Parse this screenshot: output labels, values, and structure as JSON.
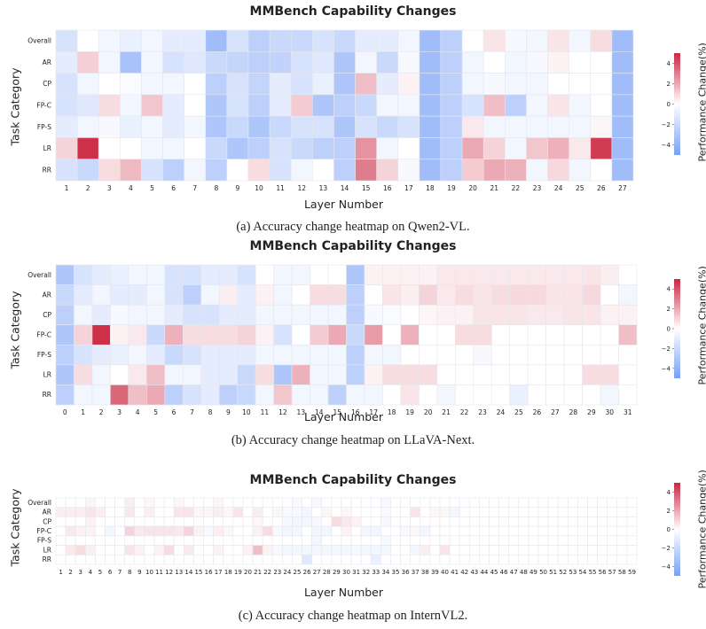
{
  "chart_data": [
    {
      "type": "heatmap",
      "title": "MMBench Capability Changes",
      "xlabel": "Layer Number",
      "ylabel": "Task Category",
      "caption": "(a) Accuracy change heatmap on Qwen2-VL.",
      "colorbar_label": "Performance Change(%)",
      "colorbar_ticks": [
        "4",
        "2",
        "0",
        "−2",
        "−4"
      ],
      "clim": [
        -5,
        5
      ],
      "rows": [
        "Overall",
        "AR",
        "CP",
        "FP-C",
        "FP-S",
        "LR",
        "RR"
      ],
      "columns": [
        "1",
        "2",
        "3",
        "4",
        "5",
        "6",
        "7",
        "8",
        "9",
        "10",
        "11",
        "12",
        "13",
        "14",
        "15",
        "16",
        "17",
        "18",
        "19",
        "20",
        "21",
        "22",
        "23",
        "24",
        "25",
        "26",
        "27"
      ],
      "values": [
        [
          -1.5,
          0,
          -0.5,
          -0.8,
          -0.5,
          -1,
          -1,
          -3.5,
          -1.5,
          -2.5,
          -2,
          -2,
          -1.5,
          -2,
          -1,
          -1,
          -0.5,
          -3.5,
          -2.5,
          0,
          0.6,
          -0.3,
          -0.5,
          0.6,
          -0.5,
          0.8,
          -3.5
        ],
        [
          -1,
          1.1,
          -0.5,
          -3.2,
          -0.5,
          -1.5,
          -1.2,
          -2,
          -2.2,
          -2.5,
          -2.3,
          -1.5,
          -1.2,
          -3,
          -0.5,
          -2,
          -0.3,
          -3.5,
          -2.5,
          -0.5,
          0,
          -0.5,
          -0.3,
          0.3,
          0,
          0,
          -3.5
        ],
        [
          -1.5,
          -0.5,
          0,
          -0.2,
          -0.5,
          -0.5,
          0,
          -2.5,
          -1.5,
          -2.2,
          -1,
          -1.5,
          -0.8,
          -3,
          1.5,
          -1,
          0.3,
          -3.5,
          -2.5,
          -0.5,
          -0.3,
          -0.5,
          -0.5,
          0,
          0,
          0,
          -3.5
        ],
        [
          -1.5,
          -1.2,
          0.8,
          -0.5,
          1.3,
          -1,
          0,
          -3,
          -1.5,
          -2.5,
          -1,
          1.2,
          -3,
          -2.5,
          -2,
          -0.5,
          -0.5,
          -3.5,
          -2.5,
          -1.5,
          1.5,
          -2.5,
          -0.5,
          0.6,
          -0.5,
          0,
          -3.5
        ],
        [
          -1,
          -0.5,
          -0.3,
          -0.8,
          -0.5,
          -1,
          -0.5,
          -3,
          -2,
          -3,
          -2,
          -1.5,
          -1.5,
          -3,
          -1.5,
          -2,
          -1.5,
          -3.5,
          -2.5,
          0.5,
          -0.5,
          -0.5,
          -0.5,
          -0.5,
          -0.5,
          0.2,
          -3.5
        ],
        [
          1,
          4.8,
          0,
          0,
          -0.5,
          -0.5,
          0,
          -2,
          -3,
          -2.5,
          -1.5,
          -2,
          -2.5,
          -2.5,
          2.5,
          -0.5,
          0,
          -3.5,
          -2.5,
          2,
          1,
          -0.5,
          1.3,
          1.8,
          0.5,
          4.5,
          -3.5
        ],
        [
          -1.5,
          -2,
          0.8,
          1.6,
          -1.5,
          -2.5,
          -0.5,
          -2.5,
          0,
          0.8,
          -1.5,
          -0.5,
          0,
          -2.5,
          3,
          1,
          -0.3,
          -3.5,
          -2.5,
          1.2,
          2,
          1.8,
          -0.5,
          0.9,
          -0.5,
          0,
          -3.5
        ]
      ]
    },
    {
      "type": "heatmap",
      "title": "MMBench Capability Changes",
      "xlabel": "Layer Number",
      "ylabel": "Task Category",
      "caption": "(b) Accuracy change heatmap on LLaVA-Next.",
      "colorbar_label": "Performance Change(%)",
      "colorbar_ticks": [
        "4",
        "2",
        "0",
        "−2",
        "−4"
      ],
      "clim": [
        -5,
        5
      ],
      "rows": [
        "Overall",
        "AR",
        "CP",
        "FP-C",
        "FP-S",
        "LR",
        "RR"
      ],
      "columns": [
        "0",
        "1",
        "2",
        "3",
        "4",
        "5",
        "6",
        "7",
        "8",
        "9",
        "10",
        "11",
        "12",
        "13",
        "14",
        "15",
        "16",
        "17",
        "18",
        "19",
        "20",
        "21",
        "22",
        "23",
        "24",
        "25",
        "26",
        "27",
        "28",
        "29",
        "30",
        "31"
      ],
      "values": [
        [
          -3,
          -1.5,
          -1,
          -0.8,
          -0.5,
          -0.5,
          -1.5,
          -1.5,
          -1,
          -1,
          -1.5,
          0,
          -0.5,
          -0.5,
          0,
          0,
          -3,
          0.3,
          0.3,
          0.3,
          0.3,
          0.5,
          0.5,
          0.5,
          0.5,
          0.5,
          0.5,
          0.5,
          0.5,
          0.6,
          0.4,
          0
        ],
        [
          -2,
          -1,
          -0.5,
          -1,
          -1,
          -0.5,
          -1.5,
          -2.5,
          -0.5,
          0.4,
          -1,
          0.3,
          -0.5,
          0,
          0.8,
          0.8,
          -2.5,
          0,
          0.6,
          0.4,
          1,
          0.5,
          0.8,
          0.6,
          0.8,
          0.9,
          0.9,
          0.6,
          0.6,
          0.9,
          0,
          -0.5
        ],
        [
          -2.5,
          -0.5,
          -1,
          -0.3,
          -0.5,
          -0.5,
          -1,
          -1.5,
          -1.5,
          -1,
          -1,
          -0.5,
          -0.5,
          -0.5,
          -0.5,
          -0.5,
          -2.5,
          -0.3,
          -0.2,
          0,
          0.2,
          0.3,
          0.3,
          0.6,
          0.6,
          0.6,
          0.5,
          0.5,
          0.6,
          0.6,
          0.3,
          0.3
        ],
        [
          -3,
          1,
          4.8,
          0.3,
          0.5,
          -2,
          1.8,
          0.8,
          0.8,
          0.8,
          1,
          0.3,
          -1.5,
          0,
          1.2,
          2,
          -2,
          2.3,
          0,
          1.8,
          0,
          0,
          0.8,
          0.8,
          0,
          0,
          0,
          0,
          0,
          0,
          0,
          1.5
        ],
        [
          -2.5,
          -1.5,
          -1,
          -0.8,
          -0.5,
          -1,
          -2,
          -1.5,
          -1,
          -1,
          -1,
          -0.5,
          -0.5,
          -0.5,
          -0.5,
          -0.5,
          -2.5,
          -0.5,
          -0.5,
          0,
          0,
          0,
          0,
          -0.3,
          0,
          0,
          0,
          0,
          0,
          0,
          0,
          0
        ],
        [
          -3,
          0.8,
          -0.5,
          0,
          0.5,
          1.5,
          -0.5,
          -0.5,
          -1,
          -1,
          -2,
          0.8,
          -3,
          1.8,
          -0.5,
          -0.5,
          -2.5,
          0.3,
          0.8,
          0.8,
          0.8,
          0,
          0,
          0,
          0,
          0,
          0,
          0,
          0,
          0.8,
          0.8,
          0
        ],
        [
          -2.5,
          -0.5,
          -0.5,
          3.5,
          1.5,
          2,
          -2.5,
          -1.5,
          -1,
          -2.5,
          -2,
          -0.5,
          1.3,
          -0.5,
          -0.5,
          -2.5,
          -0.5,
          -0.5,
          0,
          0.6,
          0,
          -0.5,
          0,
          0,
          0,
          -0.8,
          0,
          0,
          0,
          0,
          -0.5,
          0
        ]
      ]
    },
    {
      "type": "heatmap",
      "title": "MMBench Capability Changes",
      "xlabel": "Layer Number",
      "ylabel": "Task Category",
      "caption": "(c) Accuracy change heatmap on InternVL2.",
      "colorbar_label": "Performance Change(%)",
      "colorbar_ticks": [
        "4",
        "2",
        "0",
        "−2",
        "−4"
      ],
      "clim": [
        -5,
        5
      ],
      "rows": [
        "Overall",
        "AR",
        "CP",
        "FP-C",
        "FP-S",
        "LR",
        "RR"
      ],
      "columns": [
        "1",
        "2",
        "3",
        "4",
        "5",
        "6",
        "7",
        "8",
        "9",
        "10",
        "11",
        "12",
        "13",
        "14",
        "15",
        "16",
        "17",
        "18",
        "19",
        "20",
        "21",
        "22",
        "23",
        "24",
        "25",
        "26",
        "27",
        "28",
        "29",
        "30",
        "31",
        "32",
        "33",
        "34",
        "35",
        "36",
        "37",
        "38",
        "39",
        "40",
        "41",
        "42",
        "43",
        "44",
        "45",
        "46",
        "47",
        "48",
        "49",
        "50",
        "51",
        "52",
        "53",
        "54",
        "55",
        "56",
        "57",
        "58",
        "59"
      ],
      "values": [
        [
          0,
          0,
          0,
          0.2,
          0,
          0,
          0,
          0.4,
          0,
          0.2,
          0,
          0,
          0.2,
          0,
          0,
          0,
          0.2,
          0,
          0,
          0,
          0,
          0,
          0,
          0,
          -0.3,
          0,
          -0.3,
          0,
          0,
          0,
          0,
          0,
          0,
          -0.3,
          0,
          0,
          0,
          0,
          0,
          0,
          0,
          0,
          0,
          0,
          0,
          0,
          0,
          0,
          0,
          0,
          0,
          0,
          0,
          0,
          0,
          0,
          0,
          0,
          0
        ],
        [
          0.4,
          0.4,
          0.4,
          0.6,
          0.4,
          0,
          0,
          0.5,
          0,
          0.4,
          0,
          0,
          0.6,
          0.6,
          0.2,
          0.2,
          0.4,
          0.2,
          0.6,
          0,
          0.4,
          0,
          0.2,
          -0.3,
          -0.3,
          -0.5,
          0,
          0.2,
          0,
          0.2,
          0,
          0,
          0,
          -0.3,
          0,
          0,
          0.6,
          0,
          0.2,
          0.2,
          -0.5,
          0,
          0,
          0,
          0,
          0,
          0,
          0,
          0,
          0,
          0,
          0,
          0,
          0,
          0,
          0,
          0,
          0,
          0
        ],
        [
          0,
          0,
          0,
          0.3,
          0,
          0,
          0,
          0,
          0,
          0,
          0,
          0,
          0,
          0,
          0,
          0,
          0,
          0,
          0,
          0,
          0.2,
          0,
          0,
          -0.3,
          -0.5,
          -0.5,
          -0.3,
          0,
          0.8,
          0.5,
          0.3,
          0,
          0,
          -0.3,
          0,
          0,
          0,
          0,
          0,
          0,
          0,
          0,
          0,
          0,
          0,
          0,
          0,
          0,
          0,
          0,
          0,
          0,
          0,
          0,
          0,
          0,
          0,
          0,
          0
        ],
        [
          0,
          0.5,
          0.3,
          0.3,
          0,
          -0.5,
          0,
          1,
          0.5,
          0.6,
          0.6,
          0.6,
          0.5,
          1,
          0.3,
          -0.3,
          0.4,
          0.2,
          0,
          0,
          0.3,
          0.8,
          -0.3,
          -0.5,
          -0.5,
          0,
          -0.5,
          -0.5,
          0,
          0.3,
          0,
          -0.5,
          -0.5,
          0,
          0,
          -0.3,
          0.2,
          -0.5,
          0,
          0,
          0,
          0,
          0,
          0,
          0,
          0,
          0,
          0,
          0,
          0,
          0,
          0,
          0,
          0,
          0,
          0,
          0,
          0,
          0
        ],
        [
          0,
          0,
          0,
          0,
          0,
          0,
          0,
          0,
          0,
          0,
          0,
          0,
          0,
          0,
          0,
          0,
          0,
          0,
          0,
          0,
          0,
          0,
          0,
          0,
          0,
          0,
          -0.5,
          0,
          0,
          0,
          0,
          0,
          0,
          -0.3,
          0,
          0,
          0,
          0,
          0,
          0,
          0,
          0,
          0,
          0,
          0,
          0,
          0,
          0,
          0,
          0,
          0,
          0,
          0,
          0,
          0,
          0,
          0,
          0,
          0
        ],
        [
          0,
          0.5,
          0.8,
          0.4,
          0,
          0,
          0,
          0.6,
          0.3,
          0,
          0.3,
          0.8,
          0,
          0.5,
          0,
          0,
          0.3,
          0,
          0,
          0.3,
          1.5,
          0.3,
          -0.3,
          -0.5,
          -0.5,
          -0.5,
          -0.5,
          -0.5,
          -0.5,
          -0.5,
          -0.3,
          -0.5,
          -0.5,
          -0.5,
          0,
          0,
          -0.5,
          0.4,
          0,
          0.6,
          0,
          0,
          0,
          0,
          0,
          0,
          0,
          0,
          0,
          0,
          0,
          0,
          0,
          0,
          0,
          0,
          0,
          0,
          0
        ],
        [
          0,
          0,
          0,
          0,
          0,
          0,
          0,
          0,
          0,
          0,
          0,
          0,
          0,
          0,
          0,
          0,
          0,
          0,
          0,
          0,
          0,
          0,
          0,
          0,
          0,
          -1.2,
          0,
          0,
          0,
          0,
          0,
          0,
          -0.8,
          0,
          0,
          0,
          0,
          0,
          0,
          0,
          0,
          0,
          0,
          0,
          0,
          0,
          0,
          0,
          0,
          0,
          0,
          0,
          0,
          0,
          0,
          0,
          0,
          0,
          0
        ]
      ]
    }
  ]
}
